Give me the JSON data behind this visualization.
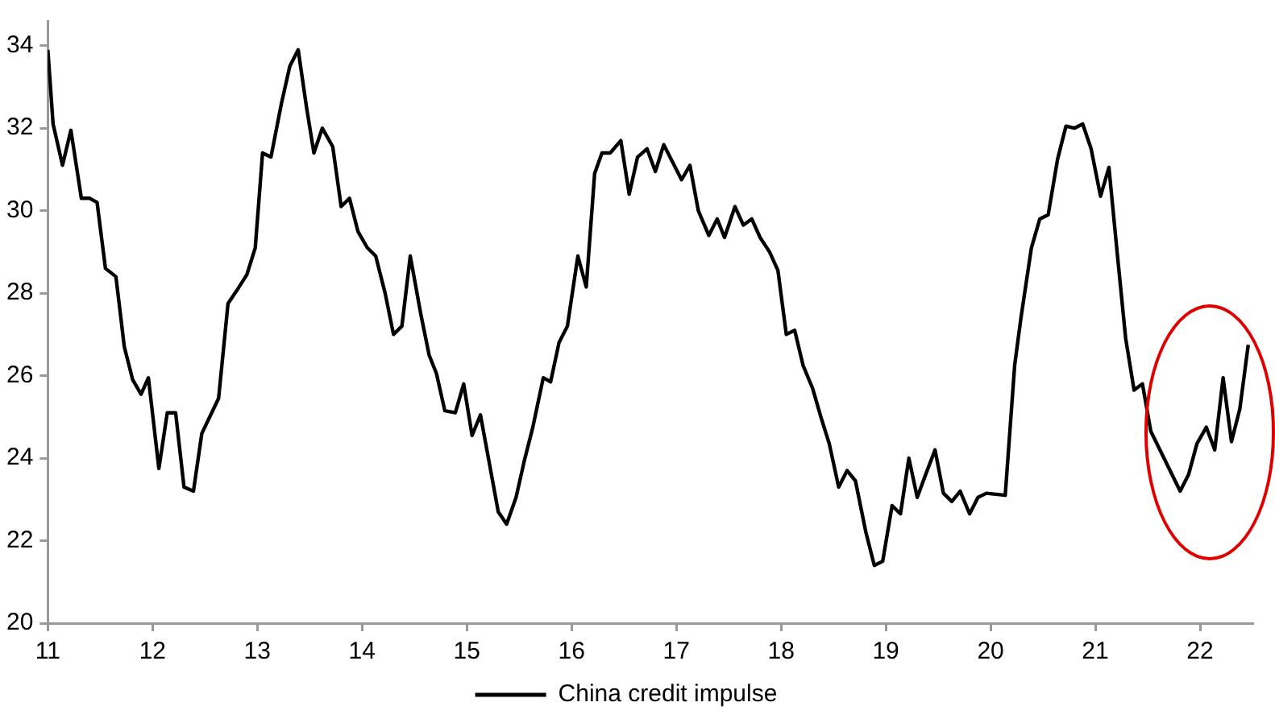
{
  "chart_data": {
    "type": "line",
    "legend": "bottom",
    "grid": false,
    "marker": "none",
    "line_style": "solid",
    "xlim": [
      11,
      22.5
    ],
    "xticks": [
      11,
      12,
      13,
      14,
      15,
      16,
      17,
      18,
      19,
      20,
      21,
      22
    ],
    "ylim": [
      20,
      34.6
    ],
    "yticks": [
      20,
      22,
      24,
      26,
      28,
      30,
      32,
      34
    ],
    "x": [
      11.0,
      11.05,
      11.14,
      11.22,
      11.32,
      11.4,
      11.47,
      11.55,
      11.65,
      11.73,
      11.81,
      11.89,
      11.96,
      12.06,
      12.14,
      12.22,
      12.3,
      12.39,
      12.47,
      12.63,
      12.72,
      12.8,
      12.9,
      12.98,
      13.05,
      13.13,
      13.23,
      13.31,
      13.39,
      13.47,
      13.54,
      13.62,
      13.72,
      13.8,
      13.88,
      13.96,
      14.05,
      14.13,
      14.22,
      14.3,
      14.38,
      14.46,
      14.56,
      14.64,
      14.71,
      14.79,
      14.89,
      14.97,
      15.05,
      15.13,
      15.3,
      15.38,
      15.47,
      15.55,
      15.63,
      15.73,
      15.8,
      15.88,
      15.96,
      16.06,
      16.14,
      16.22,
      16.29,
      16.37,
      16.47,
      16.55,
      16.63,
      16.72,
      16.8,
      16.88,
      16.96,
      17.05,
      17.13,
      17.21,
      17.31,
      17.39,
      17.46,
      17.56,
      17.64,
      17.72,
      17.8,
      17.89,
      17.97,
      18.05,
      18.13,
      18.21,
      18.3,
      18.38,
      18.46,
      18.55,
      18.63,
      18.71,
      18.81,
      18.89,
      18.97,
      19.06,
      19.14,
      19.22,
      19.3,
      19.38,
      19.47,
      19.55,
      19.63,
      19.71,
      19.8,
      19.88,
      19.96,
      20.14,
      20.23,
      20.29,
      20.39,
      20.47,
      20.55,
      20.64,
      20.72,
      20.8,
      20.88,
      20.96,
      21.05,
      21.13,
      21.21,
      21.29,
      21.37,
      21.45,
      21.53,
      21.81,
      21.89,
      21.97,
      22.06,
      22.14,
      22.22,
      22.3,
      22.38,
      22.46
    ],
    "series": [
      {
        "name": "China credit impulse",
        "color": "#000000",
        "values": [
          33.9,
          32.1,
          31.1,
          31.95,
          30.3,
          30.3,
          30.2,
          28.6,
          28.4,
          26.7,
          25.9,
          25.55,
          25.95,
          23.75,
          25.1,
          25.1,
          23.3,
          23.2,
          24.6,
          25.45,
          27.75,
          28.05,
          28.45,
          29.1,
          31.4,
          31.3,
          32.6,
          33.5,
          33.9,
          32.5,
          31.4,
          32.0,
          31.55,
          30.1,
          30.3,
          29.5,
          29.1,
          28.9,
          28.0,
          27.0,
          27.2,
          28.9,
          27.5,
          26.5,
          26.05,
          25.15,
          25.1,
          25.8,
          24.55,
          25.05,
          22.7,
          22.4,
          23.05,
          23.95,
          24.75,
          25.95,
          25.85,
          26.8,
          27.2,
          28.9,
          28.15,
          30.9,
          31.4,
          31.4,
          31.7,
          30.4,
          31.3,
          31.5,
          30.95,
          31.6,
          31.2,
          30.75,
          31.1,
          30.0,
          29.4,
          29.8,
          29.35,
          30.1,
          29.65,
          29.8,
          29.35,
          29.0,
          28.55,
          27.0,
          27.1,
          26.25,
          25.7,
          25.0,
          24.35,
          23.3,
          23.7,
          23.45,
          22.2,
          21.4,
          21.5,
          22.85,
          22.65,
          24.0,
          23.05,
          23.6,
          24.2,
          23.15,
          22.95,
          23.2,
          22.65,
          23.05,
          23.15,
          23.1,
          26.25,
          27.4,
          29.1,
          29.8,
          29.9,
          31.25,
          32.05,
          32.0,
          32.1,
          31.5,
          30.35,
          31.05,
          28.95,
          26.9,
          25.65,
          25.8,
          24.65,
          23.2,
          23.6,
          24.35,
          24.75,
          24.2,
          25.95,
          24.4,
          25.2,
          26.75
        ]
      }
    ]
  }
}
